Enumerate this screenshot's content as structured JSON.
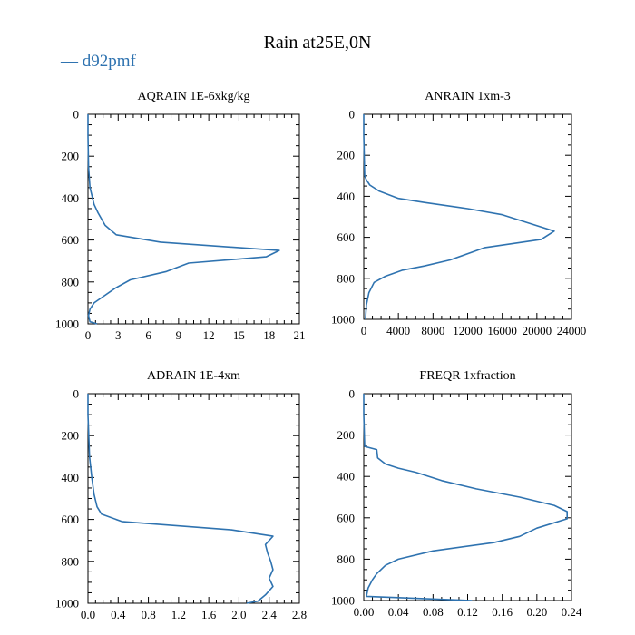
{
  "title": "Rain at25E,0N",
  "legend": {
    "marker": "—",
    "label": "d92pmf",
    "color": "#2f73b0",
    "placement": "top-left"
  },
  "chart_data": [
    {
      "type": "line",
      "title": "AQRAIN  1E-6xkg/kg",
      "xlim": [
        0,
        21
      ],
      "xticks": [
        "0",
        "3",
        "6",
        "9",
        "12",
        "15",
        "18",
        "21"
      ],
      "xtick_values": [
        0,
        3,
        6,
        9,
        12,
        15,
        18,
        21
      ],
      "ylim": [
        0,
        1000
      ],
      "y_inverted": true,
      "yticks": [
        "0",
        "200",
        "400",
        "600",
        "800",
        "1000"
      ],
      "yticks_values": [
        0,
        200,
        400,
        600,
        800,
        1000
      ],
      "grid": false,
      "series": [
        {
          "name": "d92pmf",
          "color": "#2f73b0",
          "x": [
            0,
            0,
            0.05,
            0.2,
            0.6,
            1.0,
            1.7,
            2.8,
            7.2,
            19.0,
            17.7,
            10.0,
            7.8,
            4.2,
            2.7,
            1.5,
            0.6,
            0.2,
            0.05,
            0.2,
            0.9
          ],
          "y": [
            0,
            100,
            250,
            350,
            430,
            470,
            530,
            575,
            610,
            650,
            680,
            710,
            750,
            790,
            830,
            870,
            900,
            930,
            960,
            990,
            1000
          ]
        }
      ]
    },
    {
      "type": "line",
      "title": "ANRAIN  1xm-3",
      "xlim": [
        0,
        24000
      ],
      "xticks": [
        "0",
        "4000",
        "8000",
        "12000",
        "16000",
        "20000",
        "24000"
      ],
      "xtick_values": [
        0,
        4000,
        8000,
        12000,
        16000,
        20000,
        24000
      ],
      "ylim": [
        0,
        1000
      ],
      "y_inverted": true,
      "yticks": [
        "0",
        "200",
        "400",
        "600",
        "800",
        "1000"
      ],
      "yticks_values": [
        0,
        200,
        400,
        600,
        800,
        1000
      ],
      "grid": false,
      "series": [
        {
          "name": "d92pmf",
          "color": "#2f73b0",
          "x": [
            0,
            0,
            100,
            300,
            700,
            1800,
            4000,
            7000,
            12000,
            16000,
            19000,
            22000,
            20500,
            14000,
            10000,
            7000,
            4500,
            2500,
            1200,
            600,
            300,
            200
          ],
          "y": [
            0,
            100,
            300,
            320,
            345,
            375,
            410,
            430,
            460,
            490,
            530,
            570,
            610,
            650,
            710,
            740,
            760,
            790,
            820,
            870,
            930,
            1000
          ]
        }
      ]
    },
    {
      "type": "line",
      "title": "ADRAIN  1E-4xm",
      "xlim": [
        0,
        2.8
      ],
      "xticks": [
        "0.0",
        "0.4",
        "0.8",
        "1.2",
        "1.6",
        "2.0",
        "2.4",
        "2.8"
      ],
      "xtick_values": [
        0,
        0.4,
        0.8,
        1.2,
        1.6,
        2.0,
        2.4,
        2.8
      ],
      "ylim": [
        0,
        1000
      ],
      "y_inverted": true,
      "yticks": [
        "0",
        "200",
        "400",
        "600",
        "800",
        "1000"
      ],
      "yticks_values": [
        0,
        200,
        400,
        600,
        800,
        1000
      ],
      "grid": false,
      "series": [
        {
          "name": "d92pmf",
          "color": "#2f73b0",
          "x": [
            0,
            0,
            0.02,
            0.05,
            0.08,
            0.12,
            0.18,
            0.45,
            1.9,
            2.45,
            2.35,
            2.38,
            2.42,
            2.45,
            2.4,
            2.45,
            2.35,
            2.25,
            2.1
          ],
          "y": [
            0,
            100,
            300,
            400,
            480,
            540,
            575,
            610,
            650,
            680,
            720,
            760,
            800,
            840,
            880,
            920,
            960,
            990,
            1000
          ]
        }
      ]
    },
    {
      "type": "line",
      "title": "FREQR  1xfraction",
      "xlim": [
        0,
        0.24
      ],
      "xticks": [
        "0.00",
        "0.04",
        "0.08",
        "0.12",
        "0.16",
        "0.20",
        "0.24"
      ],
      "xtick_values": [
        0,
        0.04,
        0.08,
        0.12,
        0.16,
        0.2,
        0.24
      ],
      "ylim": [
        0,
        1000
      ],
      "y_inverted": true,
      "yticks": [
        "0",
        "200",
        "400",
        "600",
        "800",
        "1000"
      ],
      "yticks_values": [
        0,
        200,
        400,
        600,
        800,
        1000
      ],
      "grid": false,
      "series": [
        {
          "name": "d92pmf",
          "color": "#2f73b0",
          "x": [
            0,
            0,
            0.001,
            0.015,
            0.016,
            0.025,
            0.04,
            0.06,
            0.09,
            0.13,
            0.18,
            0.22,
            0.235,
            0.235,
            0.2,
            0.18,
            0.15,
            0.08,
            0.04,
            0.025,
            0.015,
            0.01,
            0.005,
            0.003,
            0.125
          ],
          "y": [
            0,
            100,
            255,
            270,
            310,
            340,
            360,
            380,
            420,
            460,
            500,
            540,
            570,
            605,
            650,
            690,
            720,
            760,
            800,
            830,
            870,
            900,
            940,
            980,
            1000
          ]
        }
      ]
    }
  ]
}
